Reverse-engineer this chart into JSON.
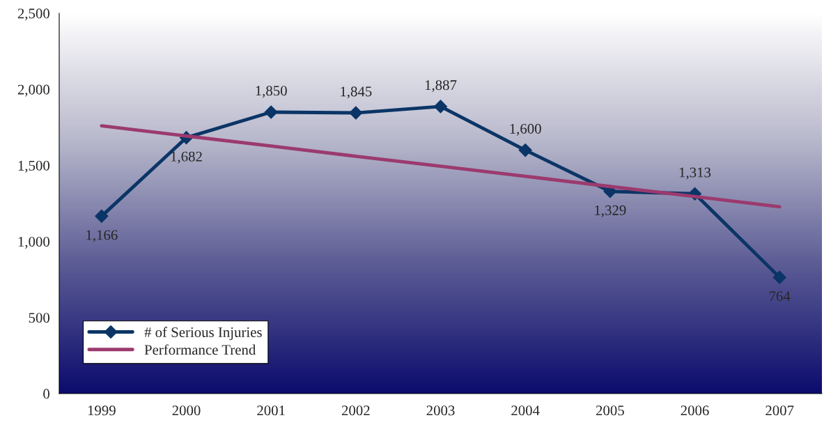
{
  "chart_data": {
    "type": "line",
    "categories": [
      "1999",
      "2000",
      "2001",
      "2002",
      "2003",
      "2004",
      "2005",
      "2006",
      "2007"
    ],
    "series": [
      {
        "name": "# of Serious Injuries",
        "color": "#0b3566",
        "values": [
          1166,
          1682,
          1850,
          1845,
          1887,
          1600,
          1329,
          1313,
          764
        ],
        "marker": "diamond",
        "value_labels": [
          "1,166",
          "1,682",
          "1,850",
          "1,845",
          "1,887",
          "1,600",
          "1,329",
          "1,313",
          "764"
        ]
      },
      {
        "name": "Performance Trend",
        "color": "#9b3a6e",
        "type": "line",
        "values": [
          1760,
          1693,
          1627,
          1560,
          1494,
          1428,
          1361,
          1295,
          1228
        ],
        "marker": "none"
      }
    ],
    "ylim": [
      0,
      2500
    ],
    "yticks": [
      0,
      {
        "value": 500,
        "label": "500"
      },
      {
        "value": 1000,
        "label": "1,000"
      },
      {
        "value": 1500,
        "label": "1,500"
      },
      {
        "value": 2000,
        "label": "2,000"
      },
      {
        "value": 2500,
        "label": "2,500"
      }
    ],
    "grid": false,
    "legend": "bottom left",
    "line_style": "solid"
  }
}
